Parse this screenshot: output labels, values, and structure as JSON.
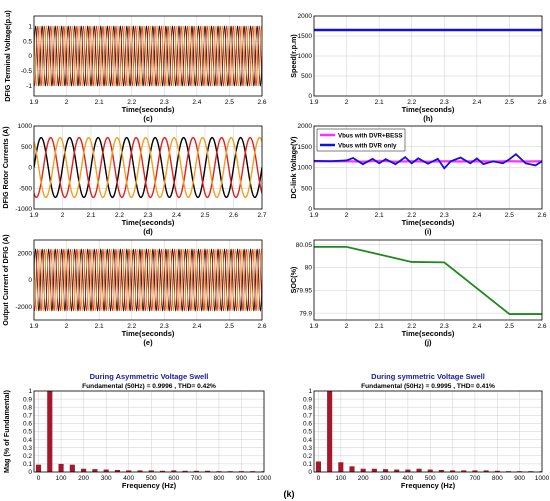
{
  "figure_label": "(k)",
  "colors": {
    "phase_a": "#000000",
    "phase_b": "#e02020",
    "phase_c": "#f0a020",
    "pink": "#ff30ff",
    "blue": "#1010e0",
    "green": "#1e8a1e",
    "maroon": "#a5182b",
    "speed": "#1010e0",
    "grid": "#cfcfcf"
  },
  "chart_data": [
    {
      "id": "c",
      "type": "line",
      "panel_label": "(c)",
      "title": "",
      "xlabel": "Time(seconds)",
      "ylabel": "DFIG Terminal Voltage(p.u)",
      "xlim": [
        1.9,
        2.6
      ],
      "ylim": [
        -1.35,
        1.35
      ],
      "xticks": [
        "1.9",
        "2",
        "2.1",
        "2.2",
        "2.3",
        "2.4",
        "2.5",
        "2.6"
      ],
      "yticks": [
        "-1",
        "-0.5",
        "0",
        "0.5",
        "1"
      ],
      "signal": {
        "kind": "three-phase",
        "amplitude": 1,
        "frequency_hz": 50,
        "x_start": 1.9,
        "x_end": 2.6
      },
      "series": [
        {
          "values_desc": "phase A"
        },
        {
          "values_desc": "phase B"
        },
        {
          "values_desc": "phase C"
        }
      ]
    },
    {
      "id": "h",
      "type": "line",
      "panel_label": "(h)",
      "title": "",
      "xlabel": "Time(seconds)",
      "ylabel": "Speed(r.p.m)",
      "xlim": [
        1.9,
        2.6
      ],
      "ylim": [
        0,
        2000
      ],
      "xticks": [
        "1.9",
        "2",
        "2.1",
        "2.2",
        "2.3",
        "2.4",
        "2.5",
        "2.6"
      ],
      "yticks": [
        "0",
        "500",
        "1000",
        "1500",
        "2000"
      ],
      "x": [
        1.9,
        2.6
      ],
      "y": [
        1650,
        1650
      ]
    },
    {
      "id": "d",
      "type": "line",
      "panel_label": "(d)",
      "title": "",
      "xlabel": "Time(seconds)",
      "ylabel": "DFIG Rotor Currents (A)",
      "xlim": [
        1.9,
        2.7
      ],
      "ylim": [
        -1000,
        1000
      ],
      "xticks": [
        "1.9",
        "2",
        "2.1",
        "2.2",
        "2.3",
        "2.4",
        "2.5",
        "2.6",
        "2.7"
      ],
      "yticks": [
        "-1000",
        "-500",
        "0",
        "500",
        "1000"
      ],
      "signal": {
        "kind": "three-phase",
        "amplitude": 720,
        "frequency_hz": 10,
        "x_start": 1.9,
        "x_end": 2.7
      }
    },
    {
      "id": "i",
      "type": "line",
      "panel_label": "(i)",
      "title": "",
      "xlabel": "Time(seconds)",
      "ylabel": "DC-link Voltage(V)",
      "xlim": [
        1.9,
        2.6
      ],
      "ylim": [
        0,
        2000
      ],
      "xticks": [
        "1.9",
        "2",
        "2.1",
        "2.2",
        "2.3",
        "2.4",
        "2.5",
        "2.6"
      ],
      "yticks": [
        "0",
        "500",
        "1000",
        "1500",
        "2000"
      ],
      "legend": [
        "Vbus with DVR+BESS",
        "Vbus with DVR only"
      ],
      "series": [
        {
          "name": "Vbus with DVR+BESS",
          "x": [
            1.9,
            2.0,
            2.05,
            2.1,
            2.15,
            2.2,
            2.25,
            2.3,
            2.35,
            2.4,
            2.45,
            2.5,
            2.55,
            2.6
          ],
          "y": [
            1150,
            1150,
            1140,
            1160,
            1140,
            1150,
            1140,
            1150,
            1145,
            1150,
            1145,
            1150,
            1145,
            1150
          ]
        },
        {
          "name": "Vbus with DVR only",
          "x": [
            1.9,
            1.95,
            2.0,
            2.02,
            2.05,
            2.08,
            2.1,
            2.12,
            2.15,
            2.18,
            2.2,
            2.22,
            2.25,
            2.28,
            2.3,
            2.32,
            2.35,
            2.38,
            2.4,
            2.42,
            2.45,
            2.48,
            2.5,
            2.52,
            2.55,
            2.58,
            2.6
          ],
          "y": [
            1160,
            1150,
            1170,
            1230,
            1080,
            1210,
            1100,
            1200,
            1080,
            1250,
            1100,
            1220,
            1090,
            1210,
            980,
            1150,
            1240,
            1100,
            1220,
            1080,
            1150,
            1100,
            1200,
            1320,
            1100,
            1050,
            1150
          ]
        }
      ]
    },
    {
      "id": "e",
      "type": "line",
      "panel_label": "(e)",
      "title": "",
      "xlabel": "Time(seconds)",
      "ylabel": "Output Current of DFIG (A)",
      "xlim": [
        1.9,
        2.6
      ],
      "ylim": [
        -3000,
        3000
      ],
      "xticks": [
        "1.9",
        "2",
        "2.1",
        "2.2",
        "2.3",
        "2.4",
        "2.5",
        "2.6"
      ],
      "yticks": [
        "-2000",
        "0",
        "2000"
      ],
      "signal": {
        "kind": "three-phase",
        "amplitude": 2300,
        "frequency_hz": 50,
        "x_start": 1.9,
        "x_end": 2.6
      }
    },
    {
      "id": "j",
      "type": "line",
      "panel_label": "(j)",
      "title": "",
      "xlabel": "Time(seconds)",
      "ylabel": "SOC(%)",
      "xlim": [
        1.9,
        2.6
      ],
      "ylim": [
        79.885,
        80.06
      ],
      "xticks": [
        "1.9",
        "2",
        "2.1",
        "2.2",
        "2.3",
        "2.4",
        "2.5",
        "2.6"
      ],
      "yticks": [
        "79.9",
        "79.95",
        "80",
        "80.05"
      ],
      "x": [
        1.9,
        2.0,
        2.2,
        2.3,
        2.5,
        2.6
      ],
      "y": [
        80.045,
        80.045,
        80.012,
        80.011,
        79.898,
        79.898
      ]
    },
    {
      "id": "k1",
      "type": "bar",
      "title": "During Asymmetric Voltage Swell",
      "subtitle": "Fundamental (50Hz) = 0.9996 , THD= 0.42%",
      "xlabel": "Frequency (Hz)",
      "ylabel": "Mag (% of Fundamental)",
      "xlim": [
        -20,
        1000
      ],
      "ylim": [
        0,
        1
      ],
      "xticks": [
        "0",
        "100",
        "200",
        "300",
        "400",
        "500",
        "600",
        "700",
        "800",
        "900",
        "1000"
      ],
      "yticks": [
        "0",
        "0.1",
        "0.2",
        "0.3",
        "0.4",
        "0.5",
        "0.6",
        "0.7",
        "0.8",
        "0.9",
        "1"
      ],
      "x": [
        0,
        50,
        100,
        150,
        200,
        250,
        300,
        350,
        400,
        450,
        500,
        550,
        600,
        650,
        700,
        750,
        800,
        850,
        900,
        950,
        1000
      ],
      "values": [
        0.09,
        1.0,
        0.1,
        0.09,
        0.04,
        0.035,
        0.03,
        0.025,
        0.02,
        0.02,
        0.02,
        0.015,
        0.02,
        0.015,
        0.015,
        0.015,
        0.01,
        0.01,
        0.01,
        0.01,
        0.01
      ]
    },
    {
      "id": "k2",
      "type": "bar",
      "title": "During symmetric Voltage Swell",
      "subtitle": "Fundamental (50Hz) = 0.9995 , THD= 0.41%",
      "xlabel": "Frequency (Hz)",
      "ylabel": "",
      "xlim": [
        -20,
        1000
      ],
      "ylim": [
        0,
        1
      ],
      "xticks": [
        "0",
        "100",
        "200",
        "300",
        "400",
        "500",
        "600",
        "700",
        "800",
        "900",
        "1000"
      ],
      "yticks": [
        "0",
        "0.1",
        "0.2",
        "0.3",
        "0.4",
        "0.5",
        "0.6",
        "0.7",
        "0.8",
        "0.9",
        "1"
      ],
      "x": [
        0,
        50,
        100,
        150,
        200,
        250,
        300,
        350,
        400,
        450,
        500,
        550,
        600,
        650,
        700,
        750,
        800,
        850,
        900,
        950,
        1000
      ],
      "values": [
        0.13,
        1.0,
        0.12,
        0.07,
        0.04,
        0.04,
        0.035,
        0.03,
        0.03,
        0.04,
        0.03,
        0.025,
        0.02,
        0.02,
        0.02,
        0.02,
        0.015,
        0.01,
        0.01,
        0.01,
        0.01
      ]
    }
  ]
}
